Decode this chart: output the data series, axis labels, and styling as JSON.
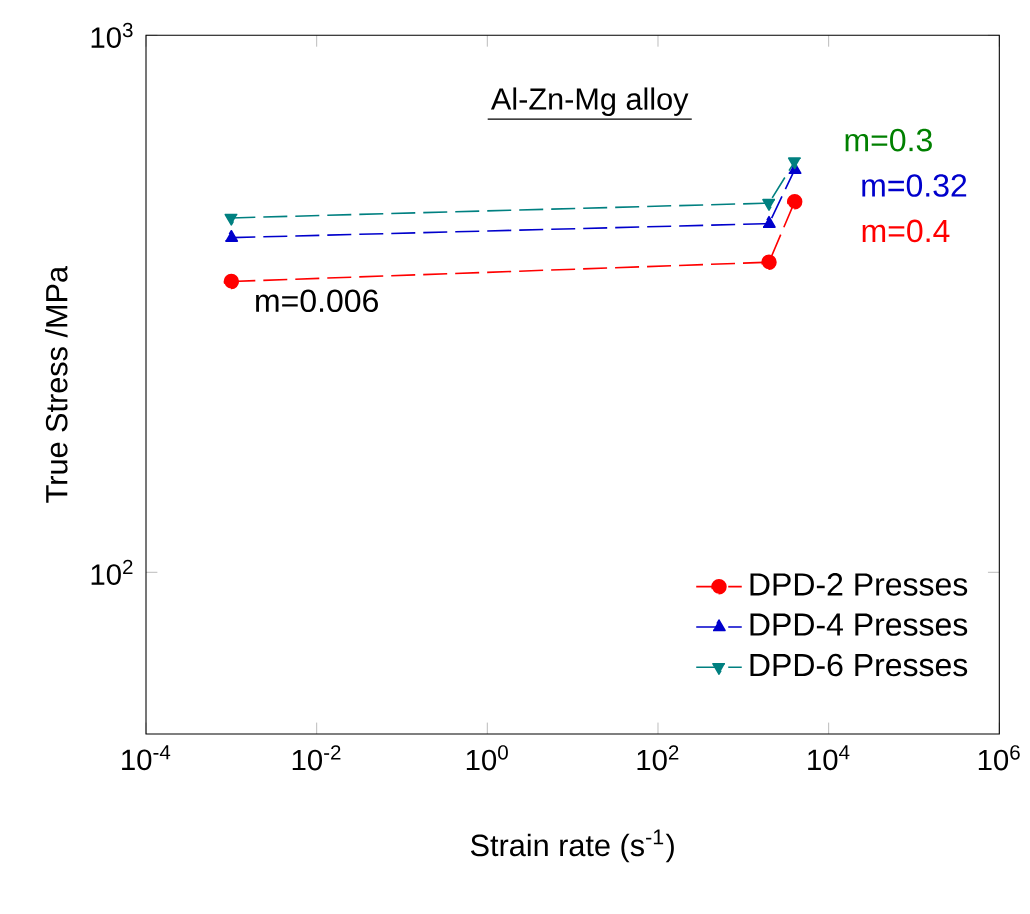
{
  "chart_data": {
    "type": "line",
    "title": "Al-Zn-Mg alloy",
    "xlabel": "Strain rate (s$^{-1}$)",
    "ylabel": "True Stress /MPa",
    "log": "xy",
    "xlim": [
      0.0001,
      1000000
    ],
    "ylim": [
      50,
      1000
    ],
    "xticks": [
      {
        "value": 0.0001,
        "label": "10$^{-4}$"
      },
      {
        "value": 0.01,
        "label": "10$^{-2}$"
      },
      {
        "value": 1,
        "label": "10$^{0}$"
      },
      {
        "value": 100,
        "label": "10$^{2}$"
      },
      {
        "value": 10000,
        "label": "10$^{4}$"
      },
      {
        "value": 1000000,
        "label": "10$^{6}$"
      }
    ],
    "yticks": [
      {
        "value": 100,
        "label": "10$^{2}$"
      },
      {
        "value": 1000,
        "label": "10$^{3}$"
      }
    ],
    "x": [
      0.001,
      2000,
      4000
    ],
    "series": [
      {
        "name": "DPD-2 Presses",
        "color": "#ff0000",
        "marker": "circle",
        "values": [
          348,
          378,
          490
        ]
      },
      {
        "name": "DPD-4 Presses",
        "color": "#0000cc",
        "marker": "triangle",
        "values": [
          420,
          446,
          562
        ]
      },
      {
        "name": "DPD-6 Presses",
        "color": "#008080",
        "marker": "triangle down",
        "values": [
          457,
          487,
          582
        ]
      }
    ],
    "line_style": "dashed",
    "legend": "bottom right",
    "grid": false,
    "annotations": [
      "m=0.006",
      "m=0.3",
      "m=0.32",
      "m=0.4"
    ]
  }
}
